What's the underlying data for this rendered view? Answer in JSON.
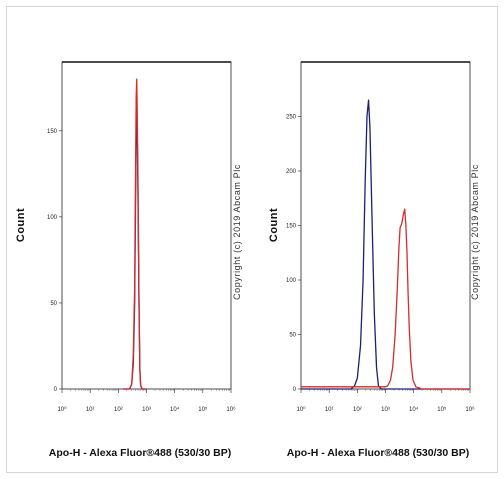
{
  "chart_data": [
    {
      "type": "line",
      "title": "",
      "xlabel": "Apo-H - Alexa Fluor®488 (530/30 BP)",
      "ylabel": "Count",
      "x_scale": "log",
      "xlim": [
        1,
        1000000
      ],
      "x_ticks": [
        "10⁰",
        "10¹",
        "10²",
        "10³",
        "10⁴",
        "10⁵",
        "10⁶"
      ],
      "ylim": [
        0,
        190
      ],
      "y_ticks": [
        0,
        50,
        100,
        150
      ],
      "watermark": "Copyright (c) 2019 Abcam Plc",
      "series": [
        {
          "color": "#1f1f6e",
          "points": [
            [
              150,
              0
            ],
            [
              250,
              0
            ],
            [
              300,
              3
            ],
            [
              340,
              15
            ],
            [
              380,
              50
            ],
            [
              410,
              110
            ],
            [
              430,
              150
            ],
            [
              450,
              160
            ],
            [
              470,
              150
            ],
            [
              500,
              110
            ],
            [
              540,
              50
            ],
            [
              580,
              12
            ],
            [
              620,
              2
            ],
            [
              700,
              0
            ],
            [
              1000,
              0
            ]
          ]
        },
        {
          "color": "#d42c2c",
          "points": [
            [
              150,
              0
            ],
            [
              250,
              0
            ],
            [
              300,
              3
            ],
            [
              340,
              20
            ],
            [
              380,
              60
            ],
            [
              410,
              130
            ],
            [
              430,
              170
            ],
            [
              450,
              180
            ],
            [
              470,
              160
            ],
            [
              500,
              120
            ],
            [
              540,
              55
            ],
            [
              580,
              12
            ],
            [
              620,
              2
            ],
            [
              700,
              0
            ],
            [
              1000,
              0
            ]
          ]
        }
      ]
    },
    {
      "type": "line",
      "title": "",
      "xlabel": "Apo-H - Alexa Fluor®488 (530/30 BP)",
      "ylabel": "Count",
      "x_scale": "log",
      "xlim": [
        1,
        1000000
      ],
      "x_ticks": [
        "10⁰",
        "10¹",
        "10²",
        "10³",
        "10⁴",
        "10⁵",
        "10⁶"
      ],
      "ylim": [
        0,
        300
      ],
      "y_ticks": [
        0,
        50,
        100,
        150,
        200,
        250
      ],
      "watermark": "Copyright (c) 2019 Abcam Plc",
      "series": [
        {
          "color": "#1f1f6e",
          "points": [
            [
              1,
              0
            ],
            [
              60,
              0
            ],
            [
              80,
              3
            ],
            [
              100,
              10
            ],
            [
              130,
              40
            ],
            [
              160,
              100
            ],
            [
              190,
              190
            ],
            [
              220,
              250
            ],
            [
              250,
              265
            ],
            [
              280,
              240
            ],
            [
              330,
              160
            ],
            [
              400,
              70
            ],
            [
              480,
              20
            ],
            [
              560,
              3
            ],
            [
              700,
              0
            ],
            [
              1000000,
              0
            ]
          ]
        },
        {
          "color": "#d42c2c",
          "points": [
            [
              1,
              2
            ],
            [
              10,
              2
            ],
            [
              100,
              2
            ],
            [
              1000,
              2
            ],
            [
              1200,
              3
            ],
            [
              1500,
              8
            ],
            [
              1800,
              20
            ],
            [
              2200,
              50
            ],
            [
              2600,
              90
            ],
            [
              3000,
              130
            ],
            [
              3300,
              148
            ],
            [
              3800,
              152
            ],
            [
              4300,
              160
            ],
            [
              4800,
              165
            ],
            [
              5300,
              150
            ],
            [
              5800,
              125
            ],
            [
              6300,
              90
            ],
            [
              7000,
              55
            ],
            [
              8000,
              25
            ],
            [
              9500,
              8
            ],
            [
              12000,
              2
            ],
            [
              20000,
              0
            ],
            [
              1000000,
              0
            ]
          ]
        }
      ]
    }
  ]
}
